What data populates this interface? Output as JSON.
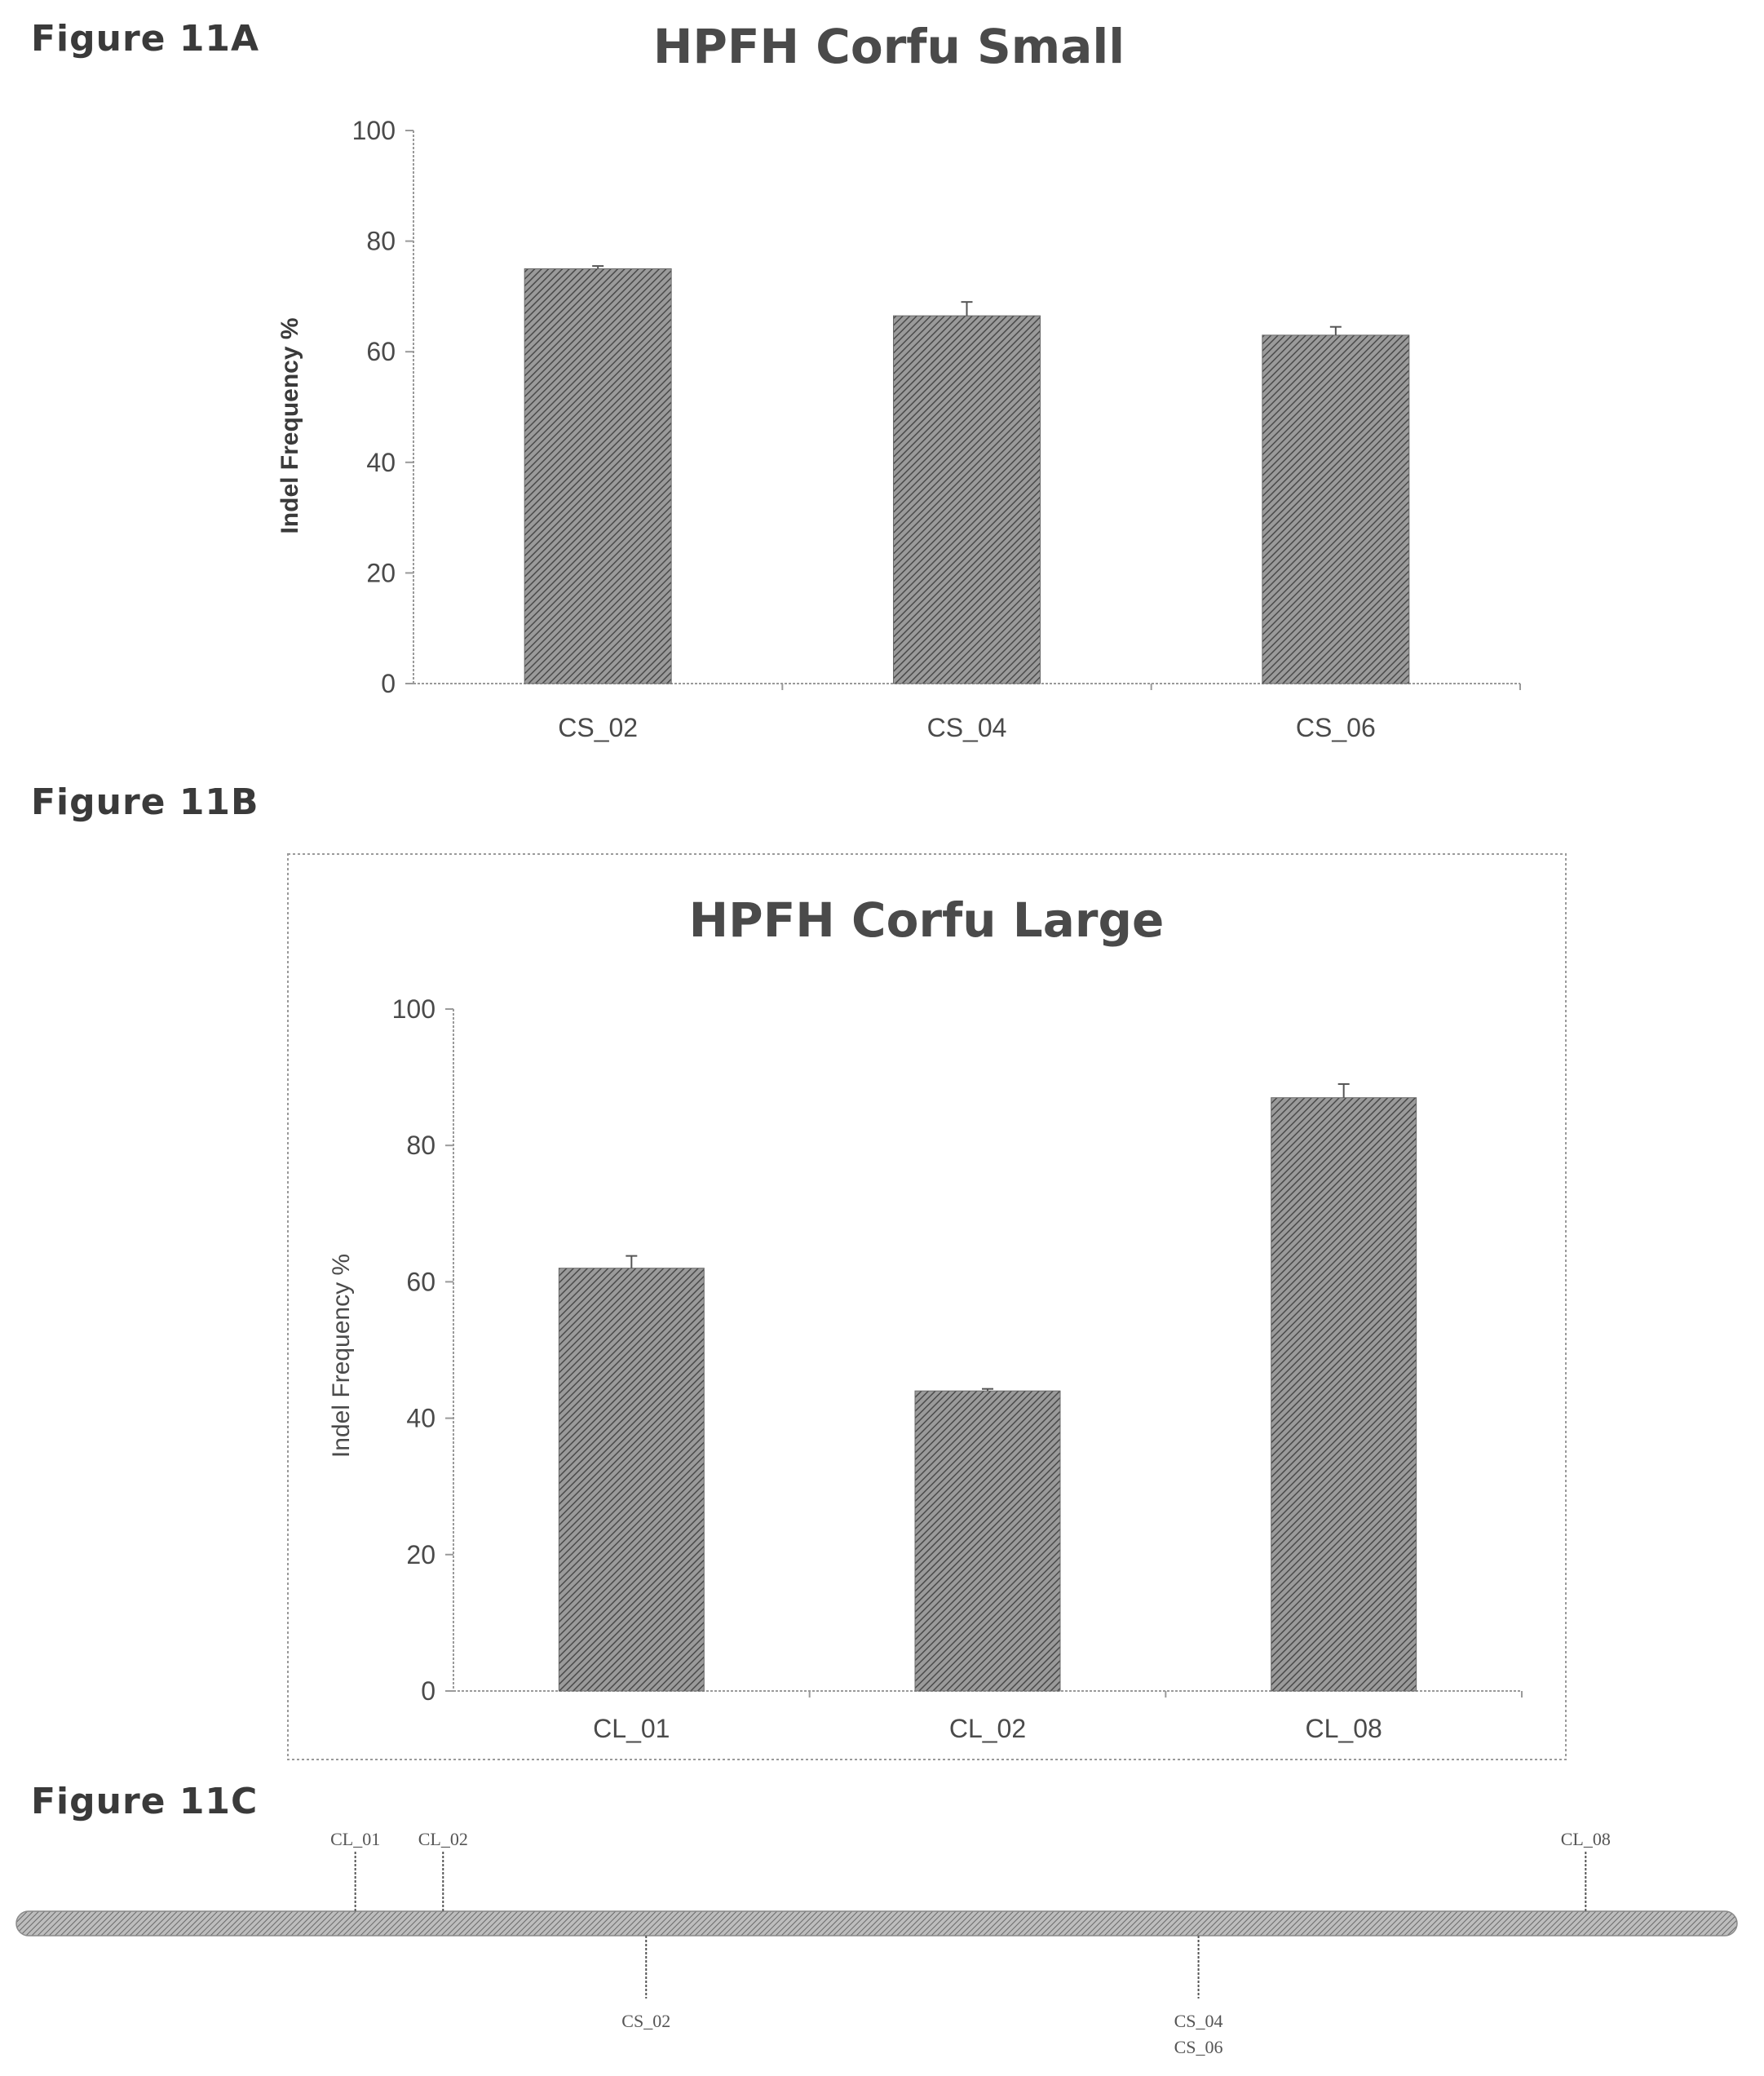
{
  "figures": {
    "a": {
      "label": "Figure 11A"
    },
    "b": {
      "label": "Figure 11B"
    },
    "c": {
      "label": "Figure 11C"
    }
  },
  "colors": {
    "bar": "#6a6a6a",
    "axis": "#9a9a9a",
    "text": "#3a3a3a"
  },
  "chart_data": [
    {
      "type": "bar",
      "title": "HPFH Corfu Small",
      "ylabel": "Indel Frequency %",
      "xlabel": "",
      "categories": [
        "CS_02",
        "CS_04",
        "CS_06"
      ],
      "values": [
        75,
        66.5,
        63
      ],
      "errors": [
        0.5,
        2.5,
        1.5
      ],
      "ylim": [
        0,
        100
      ],
      "yticks": [
        "0",
        "20",
        "40",
        "60",
        "80",
        "100"
      ],
      "grid": false
    },
    {
      "type": "bar",
      "title": "HPFH Corfu Large",
      "ylabel": "Indel Frequency %",
      "xlabel": "",
      "categories": [
        "CL_01",
        "CL_02",
        "CL_08"
      ],
      "values": [
        62,
        44,
        87
      ],
      "errors": [
        1.8,
        0.3,
        2.0
      ],
      "ylim": [
        0,
        100
      ],
      "yticks": [
        "0",
        "20",
        "40",
        "60",
        "80",
        "100"
      ],
      "grid": false
    }
  ],
  "schematic": {
    "above": [
      {
        "label": "CL_01",
        "pos": 0.197
      },
      {
        "label": "CL_02",
        "pos": 0.248
      },
      {
        "label": "CL_08",
        "pos": 0.912
      }
    ],
    "below": [
      {
        "label": "CS_02",
        "pos": 0.366
      },
      {
        "label": "CS_04",
        "label2": "CS_06",
        "pos": 0.687
      }
    ]
  }
}
